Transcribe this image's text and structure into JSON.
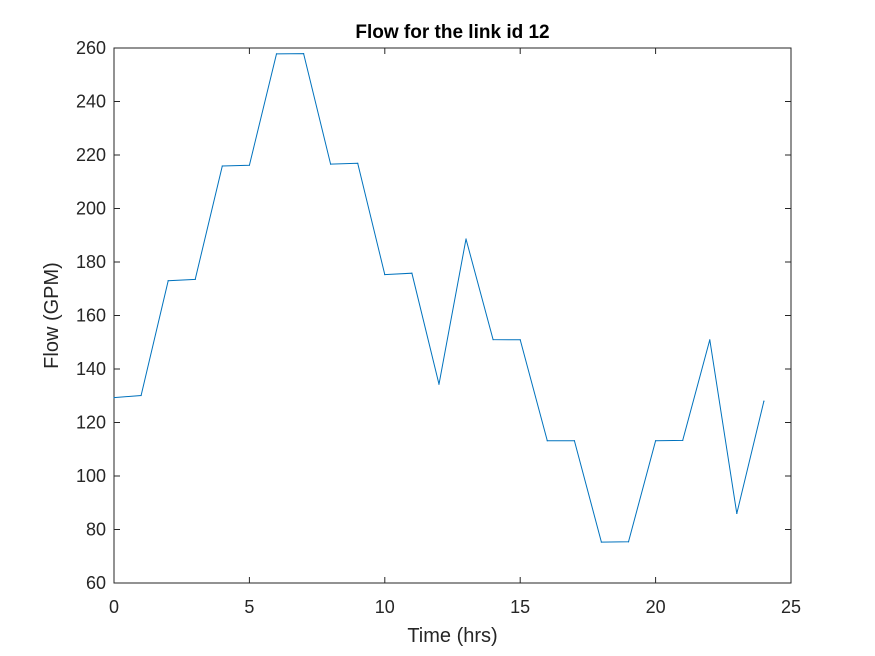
{
  "chart_data": {
    "type": "line",
    "title": "Flow for the link id 12",
    "xlabel": "Time (hrs)",
    "ylabel": "Flow (GPM)",
    "xlim": [
      0,
      25
    ],
    "ylim": [
      60,
      260
    ],
    "xticks": [
      0,
      5,
      10,
      15,
      20,
      25
    ],
    "yticks": [
      60,
      80,
      100,
      120,
      140,
      160,
      180,
      200,
      220,
      240,
      260
    ],
    "grid": false,
    "legend": "none",
    "series": [
      {
        "color": "#0072bd",
        "x": [
          0,
          1,
          2,
          3,
          4,
          5,
          6,
          7,
          8,
          9,
          10,
          11,
          12,
          13,
          14,
          15,
          16,
          17,
          18,
          19,
          20,
          21,
          22,
          23,
          24
        ],
        "y": [
          129.3,
          130.1,
          173.0,
          173.5,
          215.9,
          216.2,
          257.8,
          257.9,
          216.6,
          216.9,
          175.3,
          175.8,
          134.3,
          188.6,
          151.0,
          150.9,
          113.2,
          113.2,
          75.3,
          75.4,
          113.2,
          113.3,
          150.9,
          86.0,
          128.0
        ]
      }
    ]
  }
}
